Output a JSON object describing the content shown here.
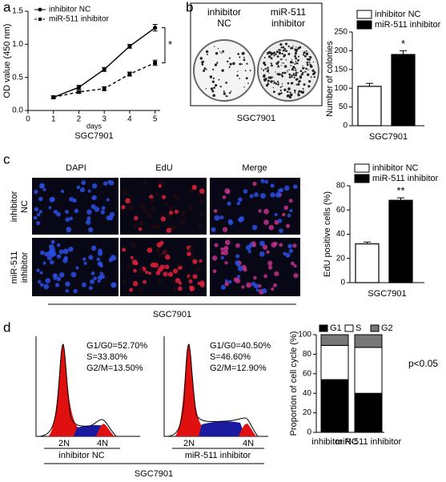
{
  "panel_labels": [
    "a",
    "b",
    "c",
    "d"
  ],
  "chart_data": [
    {
      "type": "line",
      "ylabel": "OD value (450 nm)",
      "xlabel": "days",
      "caption": "SGC7901",
      "x": [
        1,
        2,
        3,
        4,
        5
      ],
      "xlim": [
        0,
        5.2
      ],
      "xticks": [
        0,
        1,
        2,
        3,
        4,
        5
      ],
      "ylim": [
        0,
        1.5
      ],
      "yticks": [
        {
          "value": 0,
          "label": "0.0"
        },
        {
          "value": 0.5,
          "label": "0.5"
        },
        {
          "value": 1,
          "label": "1.0"
        },
        {
          "value": 1.5,
          "label": "1.5"
        }
      ],
      "series": [
        {
          "name": "inhibitor NC",
          "color": "#000000",
          "marker": "circle",
          "dashed": false,
          "values": [
            0.2,
            0.35,
            0.62,
            0.97,
            1.25
          ],
          "errors": [
            0.02,
            0.03,
            0.03,
            0.03,
            0.05
          ]
        },
        {
          "name": "miR-511 inhibitor",
          "color": "#000000",
          "marker": "square",
          "dashed": true,
          "values": [
            0.2,
            0.28,
            0.33,
            0.55,
            0.72
          ],
          "errors": [
            0.02,
            0.02,
            0.03,
            0.03,
            0.04
          ]
        }
      ],
      "annotation": "*"
    },
    {
      "type": "bar",
      "ylabel": "Number of colonies",
      "categories": [
        "SGC7901"
      ],
      "ylim": [
        0,
        250
      ],
      "yticks": [
        0,
        50,
        100,
        150,
        200,
        250
      ],
      "series": [
        {
          "name": "inhibitor NC",
          "color": "#ffffff",
          "values": [
            105
          ],
          "errors": [
            8
          ]
        },
        {
          "name": "miR-511 inhibitor",
          "color": "#000000",
          "values": [
            190
          ],
          "errors": [
            10
          ]
        }
      ],
      "annotation": "*"
    },
    {
      "type": "bar",
      "ylabel": "EdU positive cells (%)",
      "categories": [
        "SGC7901"
      ],
      "ylim": [
        0,
        80
      ],
      "yticks": [
        0,
        20,
        40,
        60,
        80
      ],
      "series": [
        {
          "name": "inhibitor NC",
          "color": "#ffffff",
          "values": [
            32
          ],
          "errors": [
            1.5
          ]
        },
        {
          "name": "miR-511 inhibitor",
          "color": "#000000",
          "values": [
            68
          ],
          "errors": [
            2
          ]
        }
      ],
      "annotation": "**"
    },
    {
      "type": "stacked_bar",
      "ylabel": "Proportion of cell cycle (%)",
      "categories": [
        "inhibitor NC",
        "miR-511 inhibitor"
      ],
      "ylim": [
        0,
        100
      ],
      "yticks": [
        0,
        20,
        40,
        60,
        80,
        100
      ],
      "series": [
        {
          "name": "G1",
          "color": "#000000",
          "values": [
            54,
            40
          ]
        },
        {
          "name": "S",
          "color": "#ffffff",
          "values": [
            35,
            47
          ]
        },
        {
          "name": "G2",
          "color": "#777777",
          "values": [
            11,
            13
          ]
        }
      ],
      "annotation": "p<0.05"
    }
  ],
  "colony": {
    "labels": [
      [
        "inhibitor",
        "NC"
      ],
      [
        "miR-511",
        "inhibitor"
      ]
    ],
    "caption": "SGC7901"
  },
  "microscopy": {
    "columns": [
      "DAPI",
      "EdU",
      "Merge"
    ],
    "rows": [
      [
        "inhibitor",
        "NC"
      ],
      [
        "miR-511",
        "inhibitor"
      ]
    ],
    "caption": "SGC7901"
  },
  "flow": {
    "plots": [
      {
        "stats": [
          "G1/G0=52.70%",
          "S=33.80%",
          "G2/M=13.50%"
        ],
        "peaks": [
          "2N",
          "4N"
        ],
        "label": "inhibitor NC"
      },
      {
        "stats": [
          "G1/G0=40.50%",
          "S=46.60%",
          "G2/M=12.90%"
        ],
        "peaks": [
          "2N",
          "4N"
        ],
        "label": "miR-511 inhibitor"
      }
    ],
    "caption": "SGC7901"
  }
}
